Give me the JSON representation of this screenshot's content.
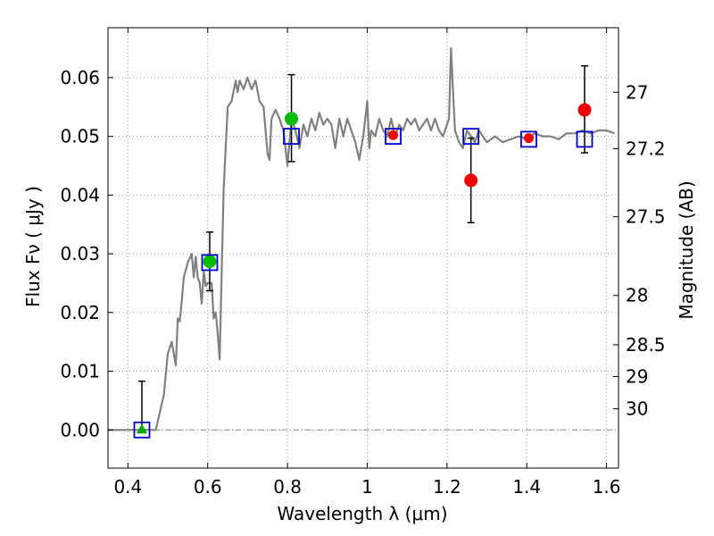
{
  "chart_data": {
    "type": "scatter",
    "xlabel": "Wavelength  λ (μm)",
    "ylabel": "Flux  Fν  ( μJy )",
    "y2label": "Magnitude (AB)",
    "xlim": [
      0.35,
      1.63
    ],
    "ylim": [
      -0.0065,
      0.0685
    ],
    "x_ticks": [
      0.4,
      0.6,
      0.8,
      1.0,
      1.2,
      1.4,
      1.6
    ],
    "x_tick_labels": [
      "0.4",
      "0.6",
      "0.8",
      "1",
      "1.2",
      "1.4",
      "1.6"
    ],
    "y_ticks": [
      0.0,
      0.01,
      0.02,
      0.03,
      0.04,
      0.05,
      0.06
    ],
    "y_tick_labels": [
      "0.00",
      "0.01",
      "0.02",
      "0.03",
      "0.04",
      "0.05",
      "0.06"
    ],
    "y2_ticks": [
      {
        "label": "27",
        "flux": 0.0575
      },
      {
        "label": "27.2",
        "flux": 0.0479
      },
      {
        "label": "27.5",
        "flux": 0.0363
      },
      {
        "label": "28",
        "flux": 0.0229
      },
      {
        "label": "28.5",
        "flux": 0.0145
      },
      {
        "label": "29",
        "flux": 0.0091
      },
      {
        "label": "30",
        "flux": 0.0036
      }
    ],
    "grid": true,
    "zero_line": true,
    "series": [
      {
        "kind": "line",
        "color": "#808080",
        "x": [
          0.35,
          0.47,
          0.49,
          0.5,
          0.51,
          0.52,
          0.525,
          0.53,
          0.535,
          0.54,
          0.55,
          0.56,
          0.565,
          0.57,
          0.575,
          0.58,
          0.585,
          0.59,
          0.595,
          0.6,
          0.61,
          0.615,
          0.62,
          0.625,
          0.63,
          0.64,
          0.65,
          0.66,
          0.67,
          0.675,
          0.68,
          0.69,
          0.7,
          0.71,
          0.72,
          0.73,
          0.74,
          0.75,
          0.755,
          0.76,
          0.77,
          0.78,
          0.79,
          0.8,
          0.81,
          0.82,
          0.83,
          0.84,
          0.85,
          0.86,
          0.87,
          0.88,
          0.89,
          0.9,
          0.91,
          0.92,
          0.93,
          0.94,
          0.95,
          0.96,
          0.97,
          0.98,
          0.99,
          1.0,
          1.005,
          1.01,
          1.02,
          1.03,
          1.04,
          1.05,
          1.06,
          1.07,
          1.08,
          1.09,
          1.1,
          1.11,
          1.12,
          1.13,
          1.14,
          1.15,
          1.16,
          1.17,
          1.18,
          1.19,
          1.2,
          1.205,
          1.21,
          1.215,
          1.22,
          1.23,
          1.24,
          1.25,
          1.26,
          1.27,
          1.28,
          1.3,
          1.32,
          1.34,
          1.36,
          1.38,
          1.4,
          1.42,
          1.44,
          1.46,
          1.48,
          1.5,
          1.52,
          1.54,
          1.56,
          1.58,
          1.6,
          1.62
        ],
        "y": [
          0.0,
          0.0,
          0.006,
          0.013,
          0.015,
          0.011,
          0.019,
          0.0185,
          0.022,
          0.026,
          0.0285,
          0.03,
          0.026,
          0.0295,
          0.026,
          0.025,
          0.0215,
          0.027,
          0.0245,
          0.025,
          0.025,
          0.019,
          0.02,
          0.0165,
          0.012,
          0.041,
          0.055,
          0.056,
          0.0595,
          0.0575,
          0.0595,
          0.058,
          0.06,
          0.058,
          0.0595,
          0.056,
          0.055,
          0.047,
          0.046,
          0.053,
          0.0545,
          0.053,
          0.051,
          0.045,
          0.053,
          0.051,
          0.048,
          0.052,
          0.05,
          0.053,
          0.051,
          0.054,
          0.052,
          0.053,
          0.052,
          0.048,
          0.053,
          0.05,
          0.053,
          0.051,
          0.049,
          0.046,
          0.05,
          0.056,
          0.048,
          0.051,
          0.05,
          0.053,
          0.051,
          0.05,
          0.053,
          0.05,
          0.052,
          0.051,
          0.053,
          0.052,
          0.053,
          0.051,
          0.052,
          0.053,
          0.051,
          0.053,
          0.051,
          0.05,
          0.052,
          0.053,
          0.065,
          0.058,
          0.051,
          0.049,
          0.048,
          0.051,
          0.05,
          0.049,
          0.051,
          0.049,
          0.05,
          0.049,
          0.0495,
          0.05,
          0.0495,
          0.0505,
          0.05,
          0.05,
          0.0495,
          0.0505,
          0.0505,
          0.051,
          0.0505,
          0.051,
          0.051,
          0.0505
        ]
      },
      {
        "kind": "markers",
        "marker": "square",
        "color": "#0000cc",
        "x": [
          0.435,
          0.605,
          0.81,
          1.065,
          1.26,
          1.405,
          1.545
        ],
        "y": [
          0.0,
          0.0285,
          0.05,
          0.05,
          0.05,
          0.0495,
          0.0495
        ]
      },
      {
        "kind": "markers",
        "marker": "triangle",
        "color": "#00aa00",
        "x": [
          0.435
        ],
        "y": [
          0.0
        ],
        "err_hi": [
          0.0083
        ],
        "err_lo": [
          0.0
        ]
      },
      {
        "kind": "markers",
        "marker": "circle",
        "color": "#00bb00",
        "x": [
          0.605,
          0.81
        ],
        "y": [
          0.0287,
          0.053
        ],
        "err_hi": [
          0.0337,
          0.0605
        ],
        "err_lo": [
          0.0237,
          0.0457
        ]
      },
      {
        "kind": "markers",
        "marker": "circle",
        "color": "#ee0000",
        "x": [
          1.26,
          1.545
        ],
        "y": [
          0.0425,
          0.0545
        ],
        "err_hi": [
          0.0497,
          0.062
        ],
        "err_lo": [
          0.0353,
          0.0472
        ]
      },
      {
        "kind": "markers",
        "marker": "circle-small",
        "color": "#ee0000",
        "x": [
          1.065,
          1.405
        ],
        "y": [
          0.0502,
          0.0497
        ]
      }
    ]
  }
}
